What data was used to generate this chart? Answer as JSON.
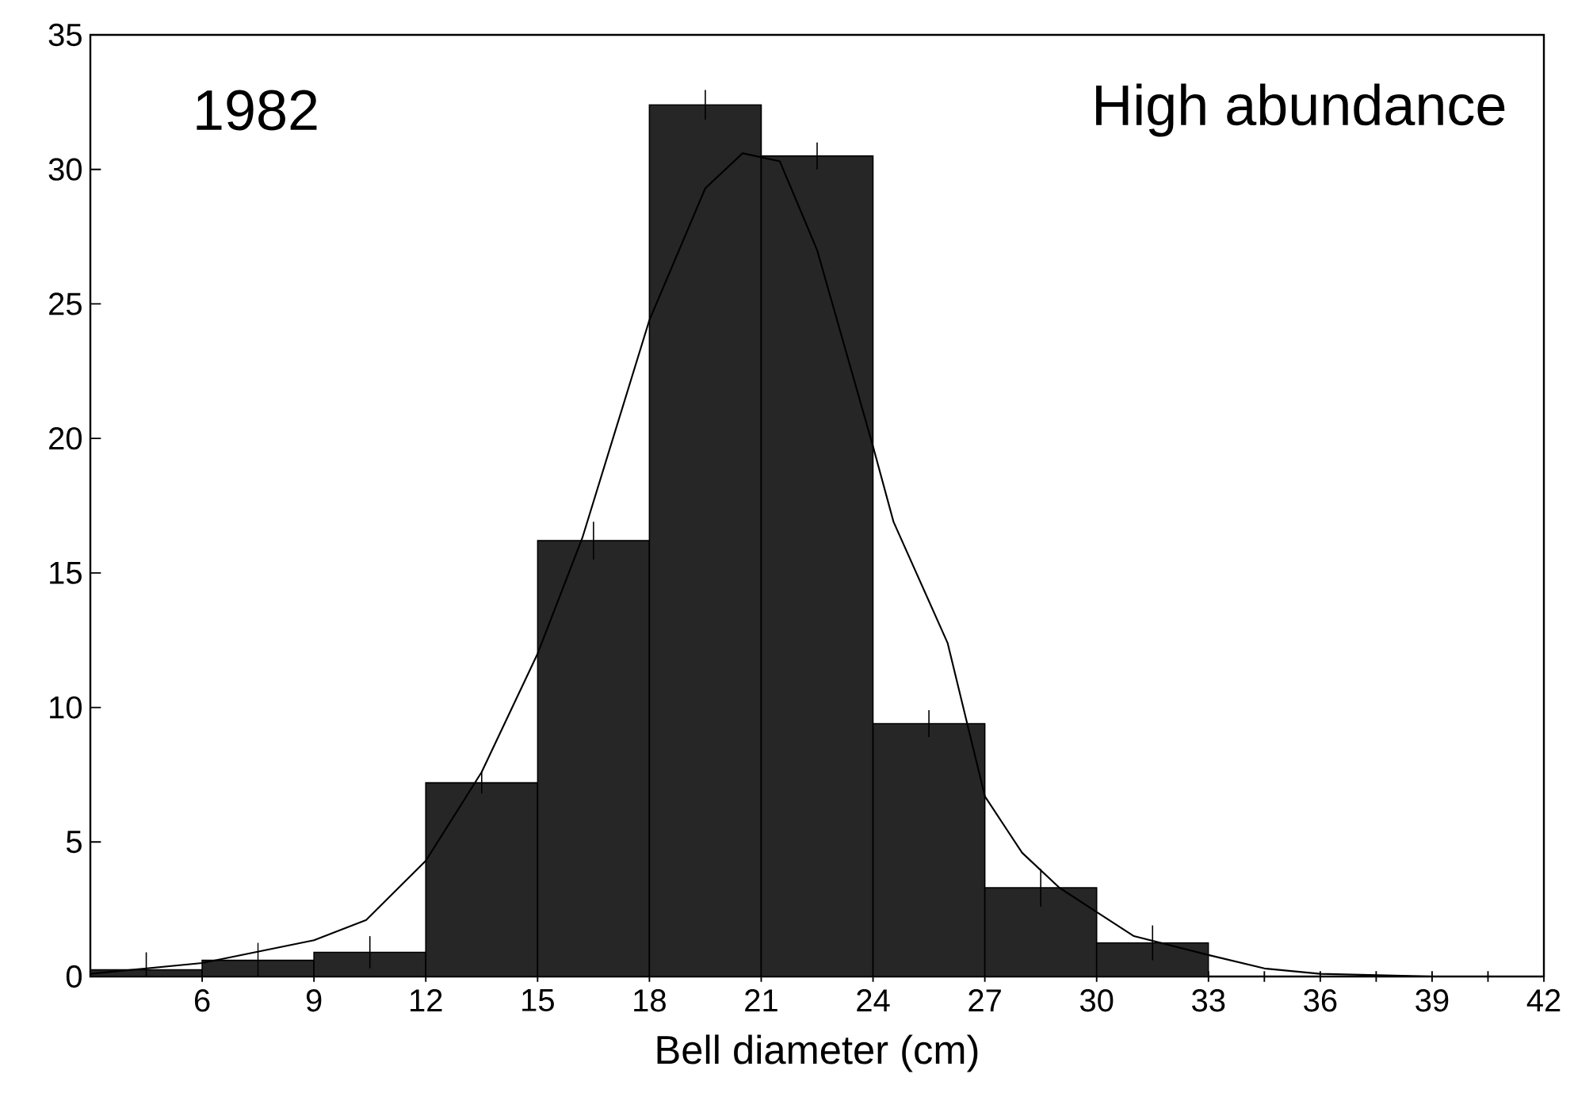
{
  "chart_data": {
    "type": "histogram",
    "xlabel": "Bell diameter (cm)",
    "annotations": [
      "1982",
      "High abundance"
    ],
    "bins": [
      3,
      6,
      9,
      12,
      15,
      18,
      21,
      24,
      27,
      30,
      33
    ],
    "values": [
      0.25,
      0.6,
      0.9,
      7.2,
      16.2,
      32.4,
      30.5,
      9.4,
      3.3,
      1.25
    ],
    "errors": [
      0.65,
      0.65,
      0.6,
      0.4,
      0.7,
      0.55,
      0.5,
      0.5,
      0.7,
      0.65
    ],
    "color": "#262626",
    "series": [
      {
        "type": "line",
        "color": "#000000",
        "x": [
          3,
          6,
          9,
          10.4,
          12,
          13.5,
          15,
          16.2,
          18,
          19.5,
          20.5,
          21.5,
          22.5,
          24,
          24.55,
          26,
          27,
          28,
          29,
          30,
          31,
          33,
          34.5,
          36,
          39,
          42
        ],
        "values": [
          0.1,
          0.5,
          1.35,
          2.1,
          4.3,
          7.6,
          12.0,
          16.3,
          24.4,
          29.3,
          30.6,
          30.3,
          27.0,
          19.7,
          16.9,
          12.4,
          6.7,
          4.6,
          3.3,
          2.4,
          1.5,
          0.8,
          0.3,
          0.1,
          0,
          0
        ]
      }
    ],
    "xlim": [
      3,
      42
    ],
    "ylim": [
      0,
      35
    ],
    "xticks": [
      6,
      9,
      12,
      15,
      18,
      21,
      24,
      27,
      30,
      33,
      36,
      39,
      42,
      {
        "value": 34.5,
        "label": null
      },
      {
        "value": 37.5,
        "label": null
      },
      {
        "value": 40.5,
        "label": null
      }
    ],
    "yticks": [
      0,
      5,
      10,
      15,
      20,
      25,
      30,
      35
    ],
    "grid": false
  }
}
